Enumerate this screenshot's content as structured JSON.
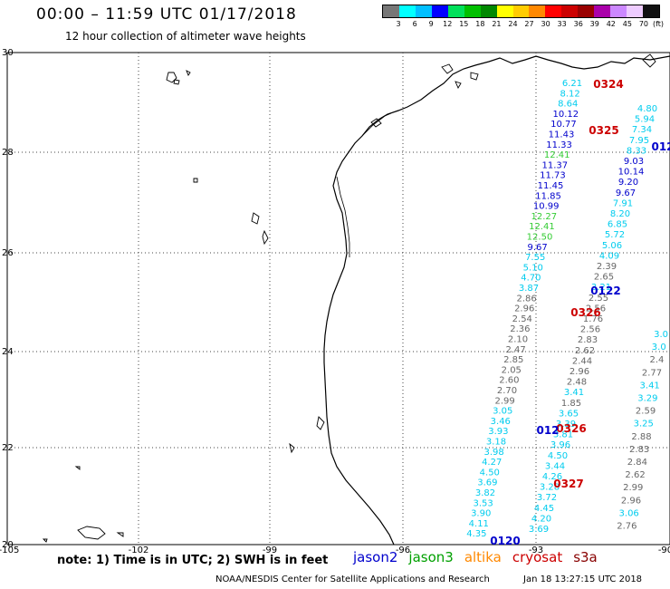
{
  "header": {
    "title": "00:00 – 11:59 UTC 01/17/2018",
    "subtitle": "12 hour collection of altimeter wave heights"
  },
  "colorbar": {
    "colors": [
      "#777777",
      "#00ffff",
      "#00bfff",
      "#0000ff",
      "#00e05a",
      "#00c000",
      "#008800",
      "#ffff00",
      "#ffcc00",
      "#ff8800",
      "#ff0000",
      "#cc0000",
      "#990000",
      "#aa00aa",
      "#cc88ff",
      "#eeccff",
      "#111111"
    ],
    "labels": [
      "3",
      "6",
      "9",
      "12",
      "15",
      "18",
      "21",
      "24",
      "27",
      "30",
      "33",
      "36",
      "39",
      "42",
      "45",
      "70",
      "(ft)"
    ]
  },
  "axes": {
    "lon_labels": [
      "-105",
      "-102",
      "-99",
      "-96",
      "-93",
      "-90"
    ],
    "lat_labels": [
      "30",
      "28",
      "26",
      "24",
      "22",
      "20"
    ]
  },
  "footer": {
    "note": "note: 1) Time is in UTC; 2) SWH is in feet",
    "credit": "NOAA/NESDIS Center for Satellite Applications and Research",
    "timestamp": "Jan 18 13:27:15 UTC 2018"
  },
  "legend": [
    {
      "name": "jason2",
      "color": "#0000cc"
    },
    {
      "name": "jason3",
      "color": "#00a000"
    },
    {
      "name": "altika",
      "color": "#ff8800"
    },
    {
      "name": "cryosat",
      "color": "#cc0000"
    },
    {
      "name": "s3a",
      "color": "#880000"
    }
  ],
  "pass_labels": [
    "0324",
    "0325",
    "0122",
    "0326",
    "0326",
    "0327",
    "0120",
    "012",
    "012"
  ],
  "wave_values": {
    "track_a": [
      "6.21",
      "8.12",
      "8.64",
      "10.12",
      "10.77",
      "11.43",
      "11.33",
      "12.41",
      "11.37",
      "11.73",
      "11.45",
      "11.85",
      "10.99",
      "12.27",
      "12.41",
      "12.50",
      "9.67",
      "7.55",
      "5.10",
      "4.70",
      "3.87",
      "2.86",
      "2.96",
      "2.54",
      "2.36",
      "2.10",
      "2.47",
      "2.85",
      "2.05",
      "2.60",
      "2.70",
      "2.99",
      "3.05",
      "3.46",
      "3.93",
      "3.18",
      "3.98",
      "4.27",
      "4.50",
      "3.69",
      "3.82",
      "3.53",
      "3.90",
      "4.11",
      "4.35"
    ],
    "track_b": [
      "4.80",
      "5.94",
      "7.34",
      "7.95",
      "8.33",
      "9.03",
      "10.14",
      "9.20",
      "9.67",
      "7.91",
      "8.20",
      "6.85",
      "5.72",
      "5.06",
      "4.09",
      "2.39",
      "2.65",
      "3.21",
      "2.55",
      "2.56",
      "1.76",
      "2.56",
      "2.83",
      "2.62",
      "2.44",
      "2.96",
      "2.48",
      "3.41",
      "1.85",
      "3.65",
      "3.39",
      "3.81",
      "3.96",
      "4.50",
      "3.44",
      "4.26",
      "3.28",
      "3.72",
      "4.45",
      "4.20",
      "3.69"
    ],
    "track_c": [
      "3.0",
      "3.0",
      "2.4",
      "2.77",
      "3.41",
      "3.29",
      "2.59",
      "3.25",
      "2.88",
      "2.83",
      "2.84",
      "2.62",
      "2.99",
      "2.96",
      "3.06",
      "2.76"
    ]
  }
}
